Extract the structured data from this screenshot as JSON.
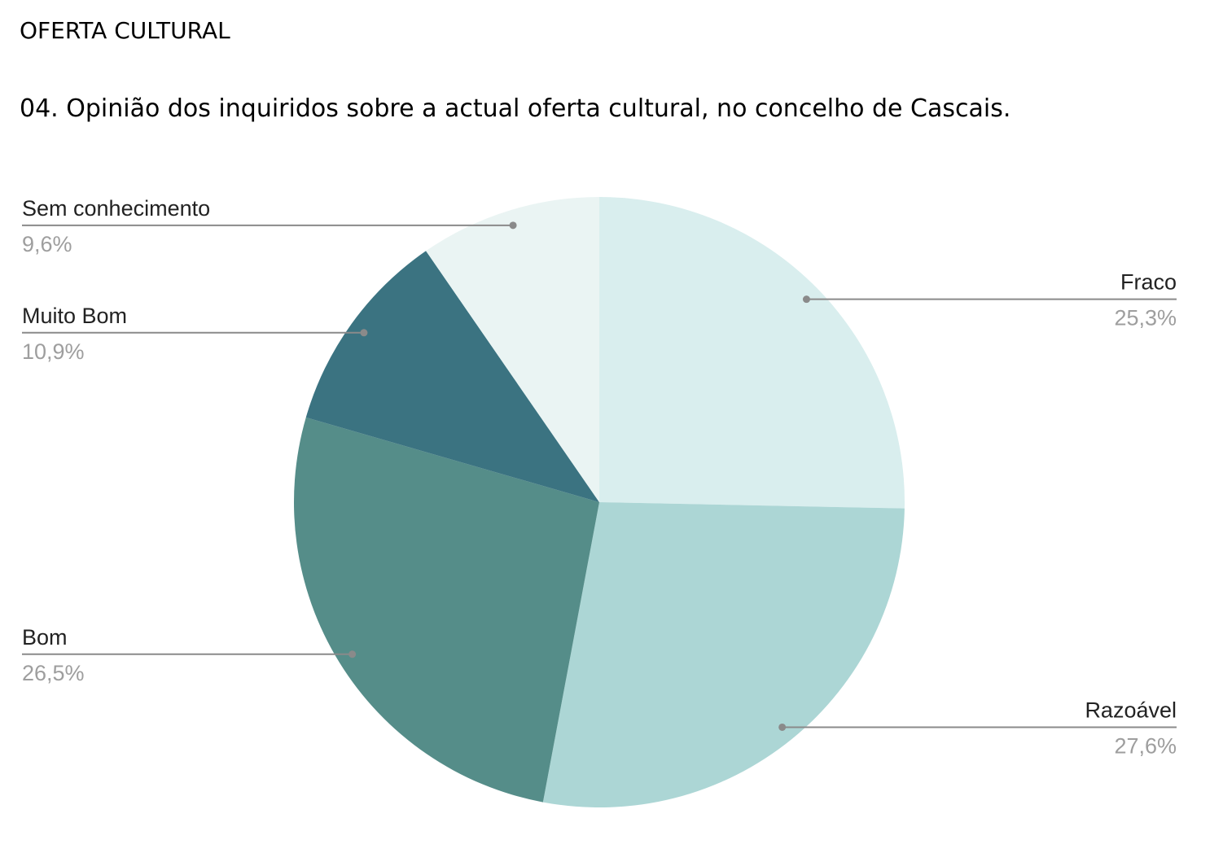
{
  "chart_data": {
    "type": "pie",
    "section": "OFERTA CULTURAL",
    "title": "04. Opinião dos inquiridos sobre a actual oferta cultural, no concelho de Cascais.",
    "categories": [
      "Fraco",
      "Razoável",
      "Bom",
      "Muito Bom",
      "Sem conhecimento"
    ],
    "values": [
      25.3,
      27.6,
      26.5,
      10.9,
      9.6
    ],
    "value_labels": [
      "25,3%",
      "27,6%",
      "26,5%",
      "10,9%",
      "9,6%"
    ],
    "colors": [
      "#d9eeee",
      "#acd6d5",
      "#558d89",
      "#3b7381",
      "#eaf4f3"
    ]
  }
}
